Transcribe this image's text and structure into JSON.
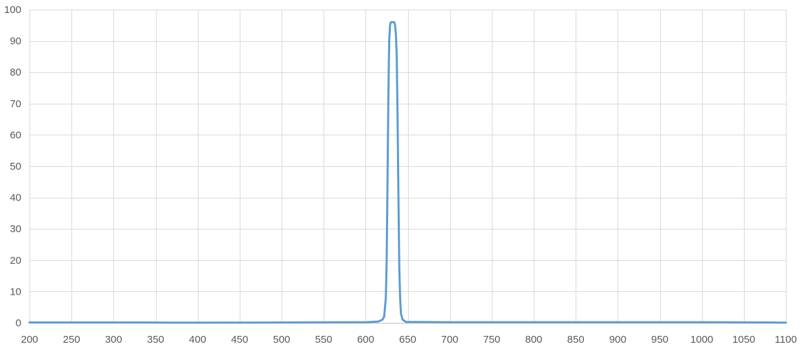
{
  "chart_data": {
    "type": "line",
    "title": "",
    "xlabel": "",
    "ylabel": "",
    "xlim": [
      200,
      1100
    ],
    "ylim": [
      0,
      100
    ],
    "x_ticks": [
      200,
      250,
      300,
      350,
      400,
      450,
      500,
      550,
      600,
      650,
      700,
      750,
      800,
      850,
      900,
      950,
      1000,
      1050,
      1100
    ],
    "y_ticks": [
      0,
      10,
      20,
      30,
      40,
      50,
      60,
      70,
      80,
      90,
      100
    ],
    "grid": true,
    "legend": "none",
    "series_color": "#5b9bd5",
    "series": [
      {
        "x": [
          200,
          300,
          340,
          380,
          500,
          600,
          615,
          620,
          622,
          624,
          625,
          626,
          627,
          628,
          629,
          630,
          631,
          632,
          633,
          634,
          635,
          636,
          637,
          638,
          639,
          640,
          641,
          642,
          644,
          648,
          700,
          800,
          900,
          1000,
          1080,
          1100
        ],
        "y": [
          0.1,
          0.1,
          0.1,
          0.05,
          0.1,
          0.2,
          0.4,
          1.0,
          2.0,
          8,
          20,
          45,
          72,
          90,
          95,
          96,
          96,
          96,
          96,
          96,
          95,
          92,
          85,
          65,
          40,
          18,
          8,
          3,
          1,
          0.3,
          0.2,
          0.2,
          0.2,
          0.2,
          0.1,
          0.05
        ]
      }
    ]
  }
}
